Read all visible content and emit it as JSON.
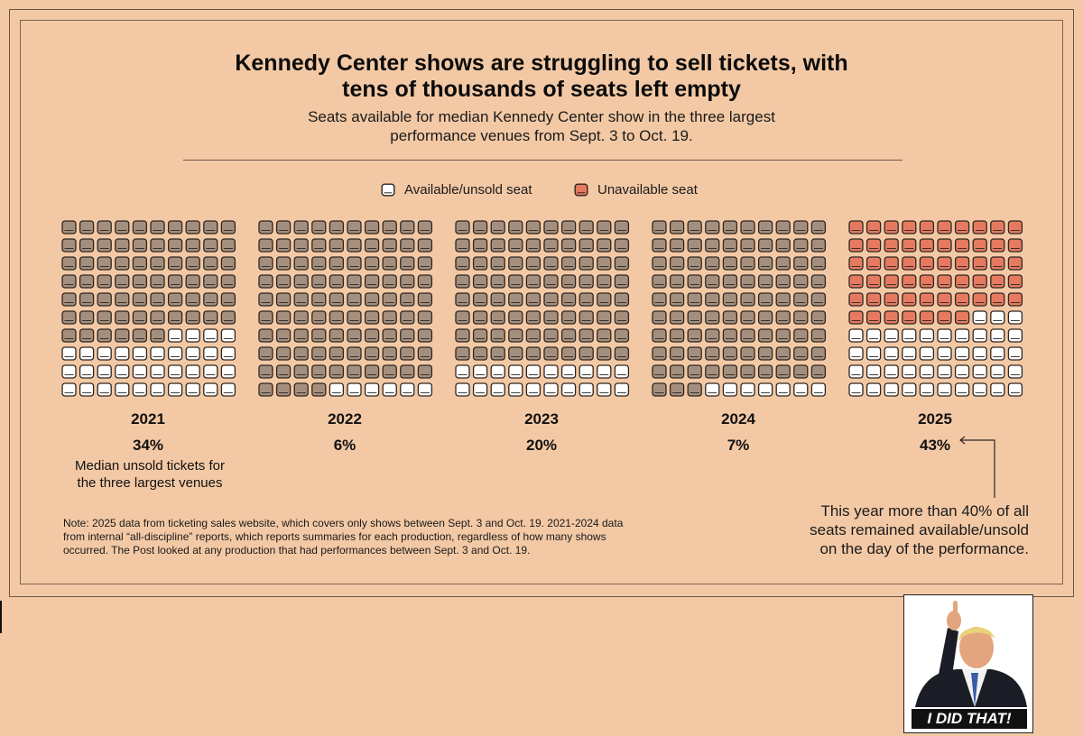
{
  "header": {
    "title_line1": "Kennedy Center shows are struggling to sell tickets, with",
    "title_line2": "tens of thousands of seats left empty",
    "subtitle_line1": "Seats available for median Kennedy Center show in the three largest",
    "subtitle_line2": "performance venues from Sept. 3 to Oct. 19."
  },
  "legend": {
    "available": "Available/unsold seat",
    "unavailable": "Unavailable seat"
  },
  "colors": {
    "background": "#f3c9a5",
    "available_fill": "#ffffff",
    "unavailable_fill": "#a48f7e",
    "unavailable_2025_fill": "#e67a60",
    "seat_stroke": "#2e2622"
  },
  "chart_data": {
    "type": "waffle",
    "title": "Kennedy Center shows are struggling to sell tickets, with tens of thousands of seats left empty",
    "grid": {
      "rows": 10,
      "cols": 10
    },
    "categories": [
      "2021",
      "2022",
      "2023",
      "2024",
      "2025"
    ],
    "series": [
      {
        "name": "Available/unsold seat",
        "values": [
          34,
          6,
          20,
          7,
          43
        ]
      },
      {
        "name": "Unavailable seat",
        "values": [
          66,
          94,
          80,
          93,
          57
        ]
      }
    ],
    "labels": [
      "34%",
      "6%",
      "20%",
      "7%",
      "43%"
    ],
    "highlight": "2025"
  },
  "caption_2021_line1": "Median unsold tickets for",
  "caption_2021_line2": "the three largest venues",
  "annotation": {
    "line1": "This year more than 40% of all",
    "line2": "seats remained available/unsold",
    "line3": "on the day of the performance."
  },
  "note": {
    "line1": "Note: 2025 data from ticketing sales website, which covers only shows between Sept. 3 and Oct. 19. 2021-2024 data",
    "line2": "from internal “all-discipline” reports, which reports summaries for each production, regardless of how many shows",
    "line3": "occurred. The Post looked at any production that had performances between Sept. 3 and Oct. 19."
  },
  "sticker": {
    "caption": "I DID THAT!"
  }
}
